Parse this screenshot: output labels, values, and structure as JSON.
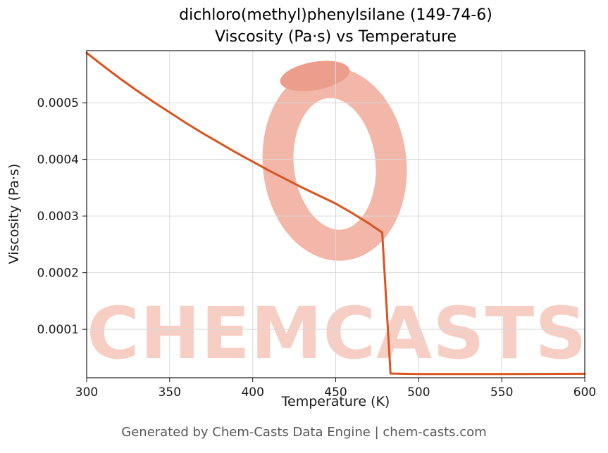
{
  "header": {
    "title_line1": "dichloro(methyl)phenylsilane (149-74-6)",
    "title_line2": "Viscosity (Pa·s) vs Temperature"
  },
  "footer": {
    "text": "Generated by Chem-Casts Data Engine | chem-casts.com"
  },
  "watermark": {
    "text": "CHEMCASTS",
    "text_color": "#f6c6ba",
    "logo_color": "#f3b7a9",
    "logo_accent_color": "#eb9e8b"
  },
  "chart_data": {
    "type": "line",
    "title": "dichloro(methyl)phenylsilane (149-74-6)\nViscosity (Pa·s) vs Temperature",
    "xlabel": "Temperature (K)",
    "ylabel": "Viscosity (Pa·s)",
    "xlim": [
      300,
      600
    ],
    "ylim": [
      1.45e-05,
      0.000592
    ],
    "xticks": [
      300,
      350,
      400,
      450,
      500,
      550,
      600
    ],
    "yticks": [
      0.0001,
      0.0002,
      0.0003,
      0.0004,
      0.0005
    ],
    "ytick_labels": [
      "0.0001",
      "0.0002",
      "0.0003",
      "0.0004",
      "0.0005"
    ],
    "grid": true,
    "legend": "none",
    "line_color": "#d9541e",
    "line_width": 3,
    "frame_color": "#1a1a1a",
    "grid_color": "#d9d9d9",
    "series": [
      {
        "name": "viscosity",
        "x": [
          300,
          310,
          320,
          330,
          340,
          350,
          360,
          370,
          380,
          390,
          400,
          410,
          420,
          430,
          440,
          450,
          460,
          470,
          477,
          478,
          483,
          490,
          500,
          520,
          550,
          575,
          600
        ],
        "y": [
          0.000588,
          0.000565,
          0.000543,
          0.000522,
          0.000502,
          0.000483,
          0.000464,
          0.000446,
          0.000429,
          0.000412,
          0.000396,
          0.00038,
          0.000365,
          0.00035,
          0.000336,
          0.000322,
          0.000305,
          0.000287,
          0.000273,
          0.000271,
          2.2e-05,
          2.15e-05,
          2.1e-05,
          2.1e-05,
          2.1e-05,
          2.12e-05,
          2.15e-05
        ]
      }
    ]
  }
}
